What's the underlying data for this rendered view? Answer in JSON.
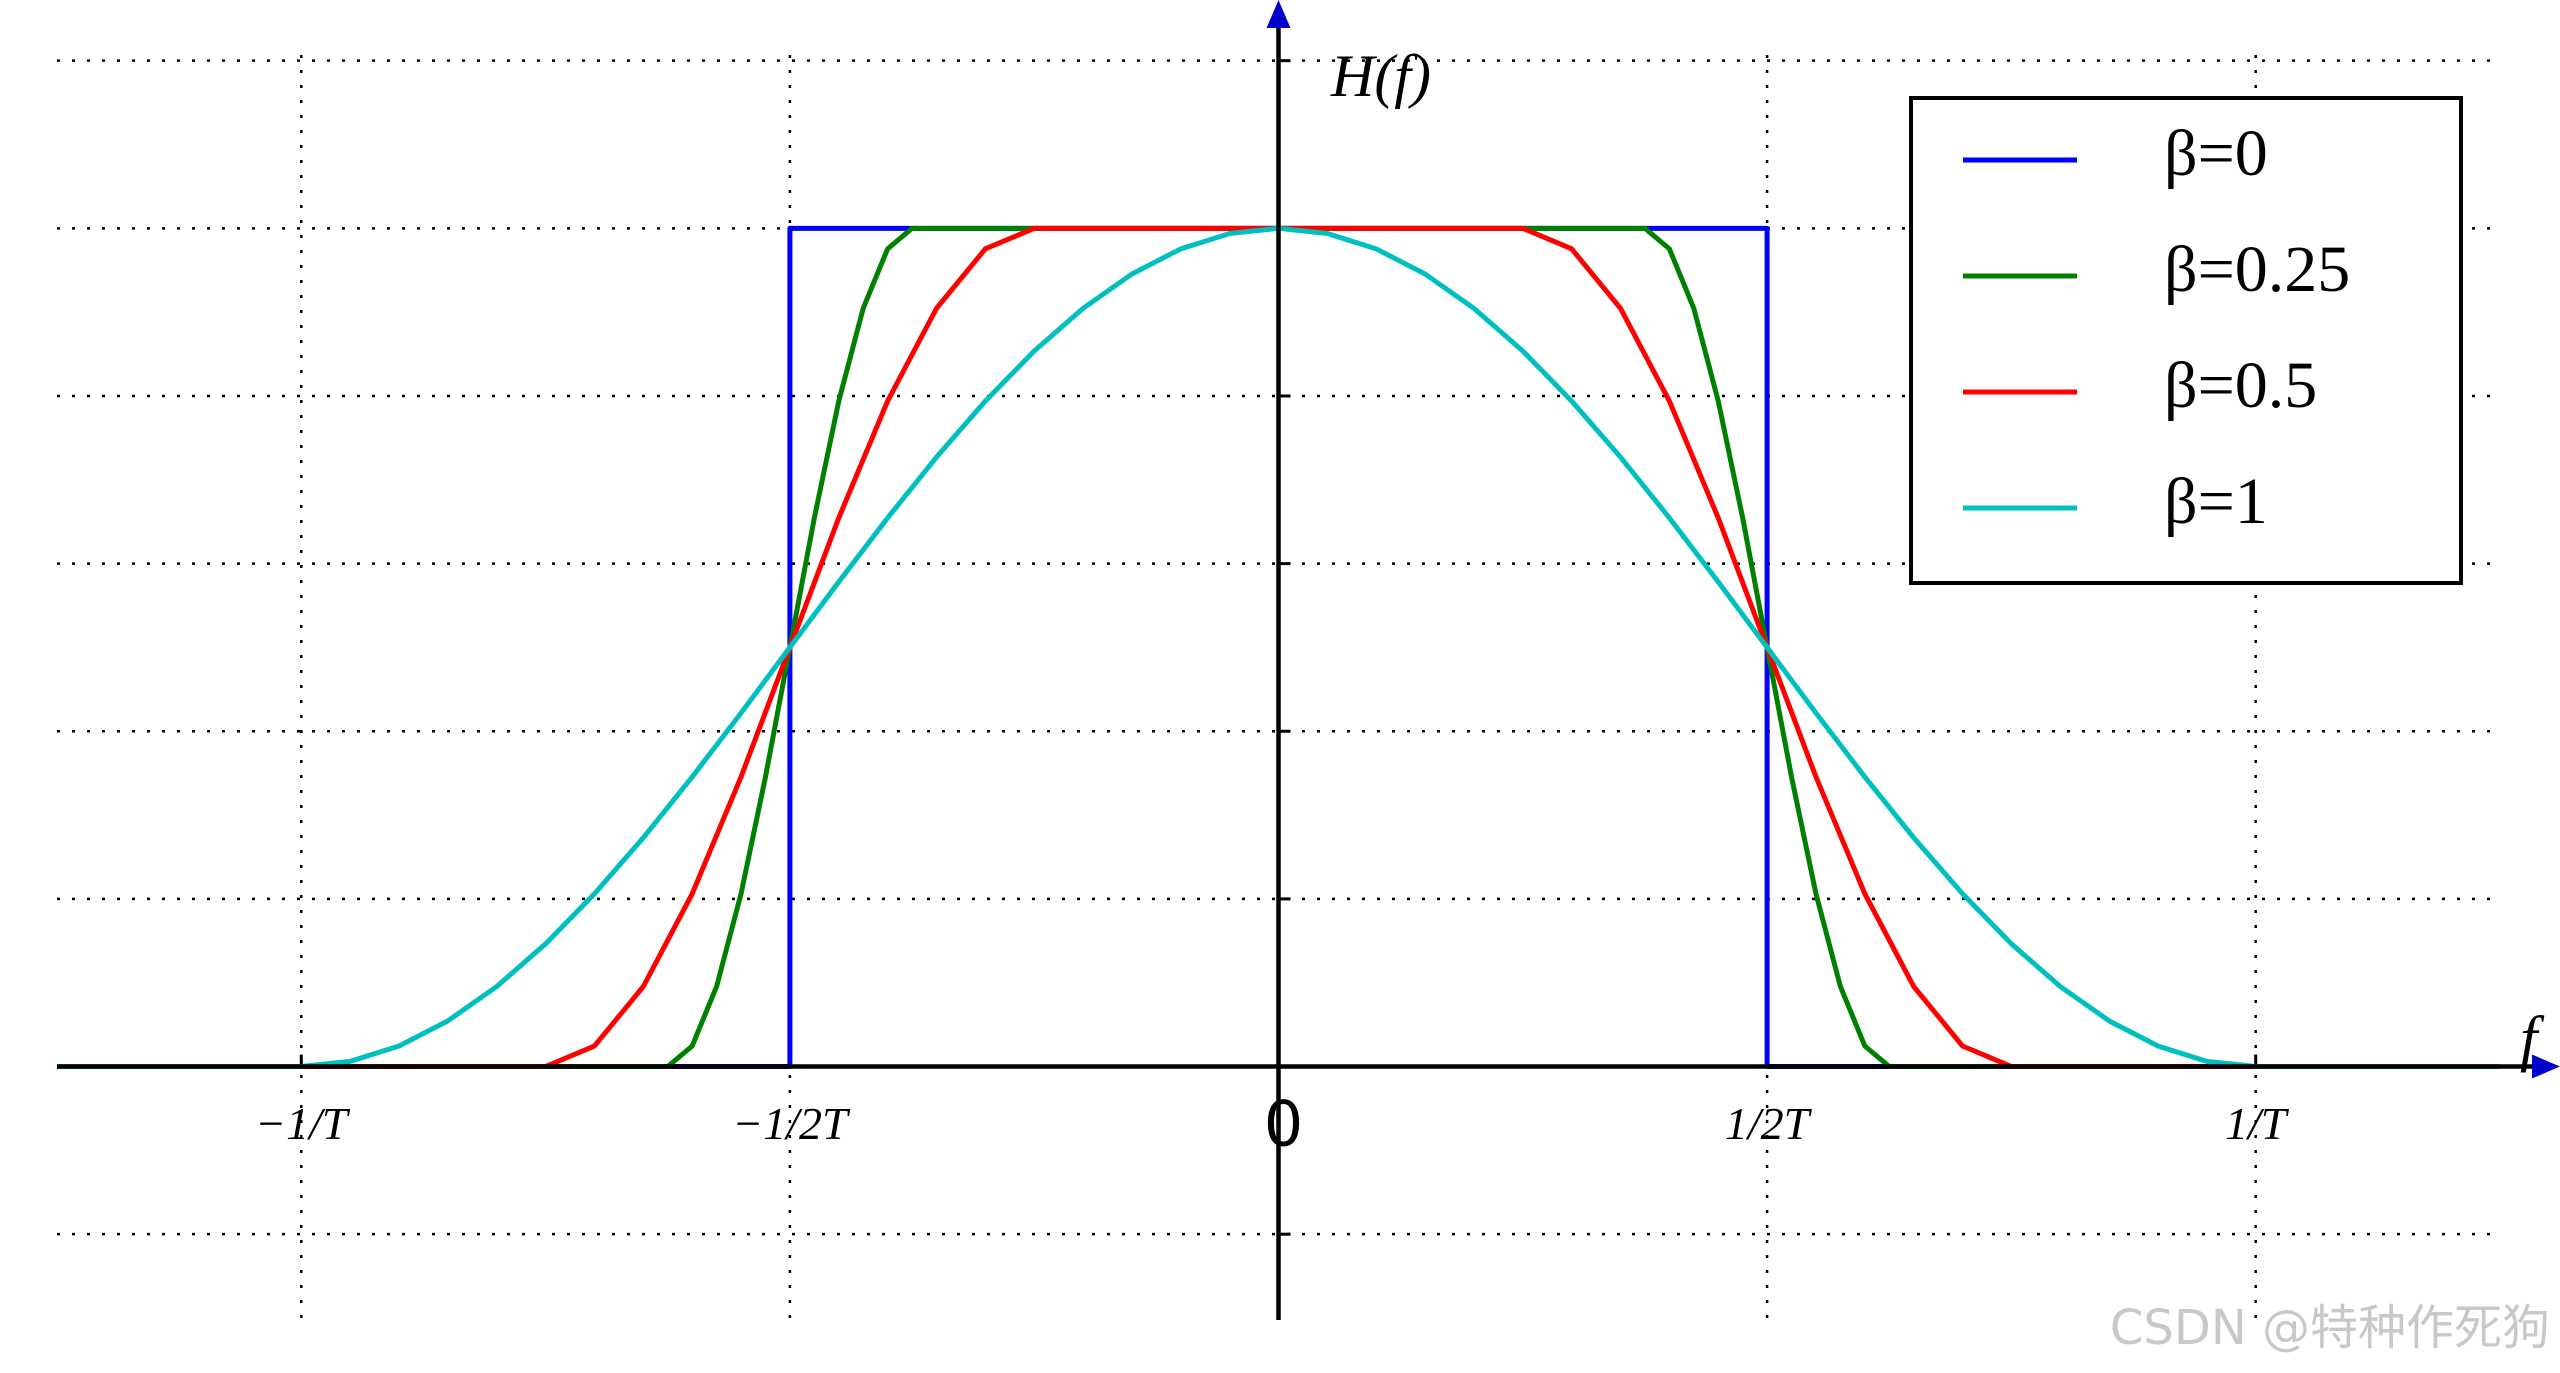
{
  "chart_data": {
    "type": "line",
    "y_label": "H(f)",
    "x_label": "f",
    "xlim": [
      -1.25,
      1.25
    ],
    "ylim": [
      -0.3,
      1.27
    ],
    "xticks": [
      {
        "value": -1,
        "label": "−1/T"
      },
      {
        "value": -0.5,
        "label": "−1/2T"
      },
      0,
      {
        "value": 0.5,
        "label": "1/2T"
      },
      {
        "value": 1,
        "label": "1/T"
      }
    ],
    "yticks": [
      -0.2,
      0,
      0.2,
      0.4,
      0.6,
      0.8,
      1,
      1.2
    ],
    "grid": true,
    "legend": "upper right",
    "series": [
      {
        "name": "β=0",
        "color": "#0000ff",
        "x": [
          -1.25,
          -0.5,
          -0.5,
          0.5,
          0.5,
          1.25
        ],
        "values": [
          0,
          0,
          1,
          1,
          0,
          0
        ]
      },
      {
        "name": "β=0.25",
        "color": "#008000",
        "x": [
          -1.25,
          -0.625,
          -0.6,
          -0.575,
          -0.55,
          -0.525,
          -0.5,
          -0.475,
          -0.45,
          -0.425,
          -0.4,
          -0.375,
          0.375,
          0.4,
          0.425,
          0.45,
          0.475,
          0.5,
          0.525,
          0.55,
          0.575,
          0.6,
          0.625,
          1.25
        ],
        "values": [
          0,
          0,
          0.0245,
          0.0955,
          0.2061,
          0.3455,
          0.5,
          0.6545,
          0.7939,
          0.9045,
          0.9755,
          1,
          1,
          0.9755,
          0.9045,
          0.7939,
          0.6545,
          0.5,
          0.3455,
          0.2061,
          0.0955,
          0.0245,
          0,
          0
        ]
      },
      {
        "name": "β=0.5",
        "color": "#ff0000",
        "x": [
          -1.25,
          -0.75,
          -0.7,
          -0.65,
          -0.6,
          -0.55,
          -0.5,
          -0.45,
          -0.4,
          -0.35,
          -0.3,
          -0.25,
          0.25,
          0.3,
          0.35,
          0.4,
          0.45,
          0.5,
          0.55,
          0.6,
          0.65,
          0.7,
          0.75,
          1.25
        ],
        "values": [
          0,
          0,
          0.0245,
          0.0955,
          0.2061,
          0.3455,
          0.5,
          0.6545,
          0.7939,
          0.9045,
          0.9755,
          1,
          1,
          0.9755,
          0.9045,
          0.7939,
          0.6545,
          0.5,
          0.3455,
          0.2061,
          0.0955,
          0.0245,
          0,
          0
        ]
      },
      {
        "name": "β=1",
        "color": "#00bfbf",
        "x": [
          -1.25,
          -1,
          -0.95,
          -0.9,
          -0.85,
          -0.8,
          -0.75,
          -0.7,
          -0.65,
          -0.6,
          -0.55,
          -0.5,
          -0.45,
          -0.4,
          -0.35,
          -0.3,
          -0.25,
          -0.2,
          -0.15,
          -0.1,
          -0.05,
          0,
          0.05,
          0.1,
          0.15,
          0.2,
          0.25,
          0.3,
          0.35,
          0.4,
          0.45,
          0.5,
          0.55,
          0.6,
          0.65,
          0.7,
          0.75,
          0.8,
          0.85,
          0.9,
          0.95,
          1,
          1.25
        ],
        "values": [
          0,
          0,
          0.0062,
          0.0245,
          0.0545,
          0.0955,
          0.1464,
          0.2061,
          0.273,
          0.3455,
          0.4218,
          0.5,
          0.5782,
          0.6545,
          0.727,
          0.7939,
          0.8536,
          0.9045,
          0.9455,
          0.9755,
          0.9938,
          1,
          0.9938,
          0.9755,
          0.9455,
          0.9045,
          0.8536,
          0.7939,
          0.727,
          0.6545,
          0.5782,
          0.5,
          0.4218,
          0.3455,
          0.273,
          0.2061,
          0.1464,
          0.0955,
          0.0545,
          0.0245,
          0.0062,
          0,
          0
        ]
      }
    ]
  },
  "watermark": "CSDN @特种作死狗"
}
